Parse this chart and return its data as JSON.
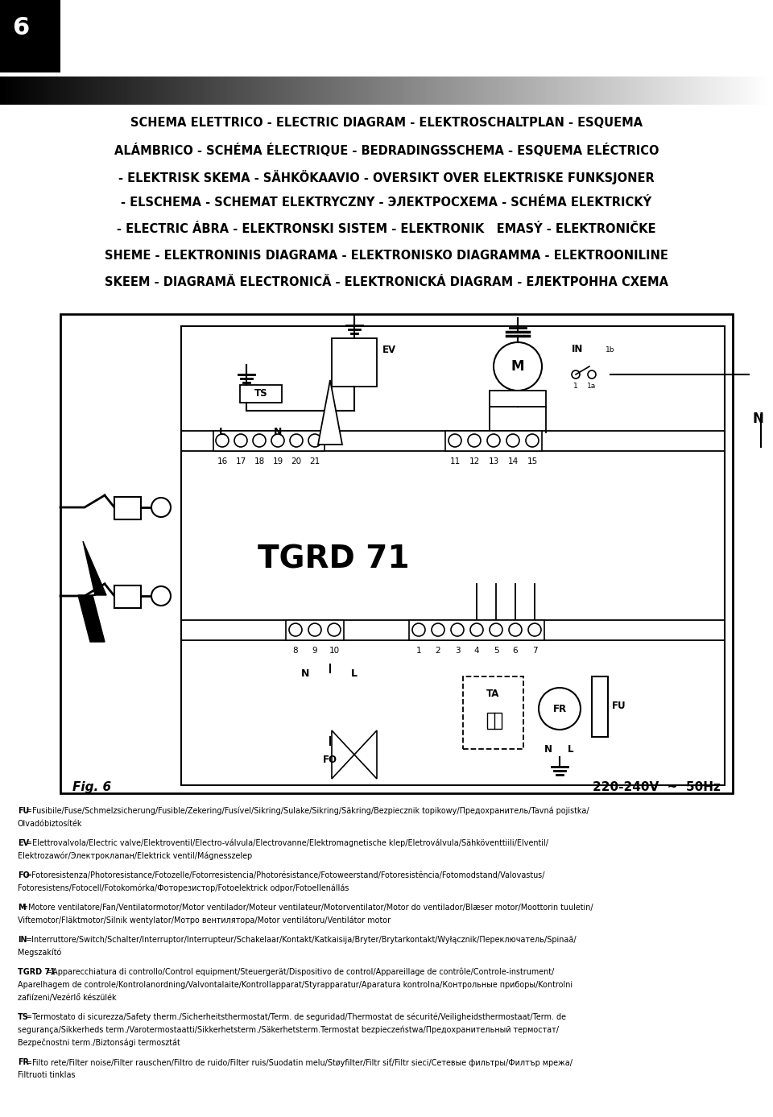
{
  "page_num": "6",
  "title_lines": [
    "SCHEMA ELETTRICO - ELECTRIC DIAGRAM - ELEKTROSCHALTPLAN - ESQUEMA",
    "ALÁMBRICO - SCHÉMA ÉLECTRIQUE - BEDRADINGSSCHEMA - ESQUEMA ELÉCTRICO",
    "- ELEKTRISK SKEMA - SÄHKÖKAAVIO - OVERSIKT OVER ELEKTRISKE FUNKSJONER",
    "- ELSCHEMA - SCHEMAT ELEKTRYCZNY - ЭЛЕКТРОСХЕМА - SCHÉMA ELEKTRICKÝ",
    "- ELECTRIC ÁBRA - ELEKTRONSKI SISTEM - ELEKTRONIK   EMASÝ - ELEKTRONIČKE",
    "SHEME - ELEKTRONINIS DIAGRAMA - ELEKTRONISKO DIAGRAMMA - ELEKTROONILINE",
    "SKEEM - DIAGRAMĂ ELECTRONICĂ - ELEKTRONICKÁ DIAGRAM - ЕЛЕКТРОННА СХЕМА"
  ],
  "diagram_label": "TGRD 71",
  "fig_label": "Fig. 6",
  "voltage_label": "220-240V  ~  50Hz",
  "footer_lines": [
    [
      "FU",
      "=Fusibile/Fuse/Schmelzsicherung/Fusible/Zekering/Fusível/Sikring/Sulake/Sikring/Säkring/Bezpiecznik topikowy/Предохранитель/Tavná pojistka/",
      "Olvadóbiztosíték"
    ],
    [
      "EV",
      "=Elettrovalvola/Electric valve/Elektroventil/Electro-válvula/Electrovanne/Elektromagnetische klep/Eletroválvula/Sähköventtiili/Elventil/",
      "Elektrozawór/Электроклапан/Elektrick ventil/Mágnesszelep"
    ],
    [
      "FO",
      "=Fotoresistenza/Photoresistance/Fotozelle/Fotorresistencia/Photorésistance/Fotoweerstand/Fotoresistência/Fotomodstand/Valovastus/",
      "Fotoresistens/Fotocell/Fotokomórka/Фоторезистор/Fotoelektrick odpor/Fotoellenállás"
    ],
    [
      "M",
      "=Motore ventilatore/Fan/Ventilatormotor/Motor ventilador/Moteur ventilateur/Motorventilator/Motor do ventilador/Blæser motor/Moottorin tuuletin/",
      "Viftemotor/Fläktmotor/Silnik wentylator/Мотро вентилятора/Motor ventilátoru/Ventilátor motor"
    ],
    [
      "IN",
      "=Interruttore/Switch/Schalter/Interruptor/Interrupteur/Schakelaar/Kontakt/Katkaisija/Bryter/Brytarkontakt/Wyłącznik/Переключатель/Spinaă/",
      "Megszakító"
    ],
    [
      "TGRD 71",
      "=Apparecchiatura di controllo/Control equipment/Steuergerät/Dispositivo de control/Appareillage de contrôle/Controle-instrument/",
      "Aparelhagem de controle/Kontrolanordning/Valvontalaite/Kontrollapparat/Styrapparatur/Aparatura kontrolna/Контрольные приборы/Kontrolni",
      "zafiízeni/Vezérlő készülék"
    ],
    [
      "TS",
      "=Termostato di sicurezza/Safety therm./Sicherheitsthermostat/Term. de seguridad/Thermostat de sécurité/Veiligheidsthermostaat/Term. de",
      "segurança/Sikkerheds term./Varotermostaatti/Sikkerhetsterm./Säkerhetsterm.Termostat bezpieczeństwa/Предохранительный термостат/",
      "Bezpečnostni term./Biztonsági termosztát"
    ],
    [
      "FR",
      "=Filto rete/Filter noise/Filter rauschen/Filtro de ruido/Filter ruis/Suodatin melu/Støyfilter/Filtr siť/Filtr sieci/Сетевые фильтры/Филтър мрежа/",
      "Filtruoti tinklas"
    ]
  ],
  "bg_color": "#ffffff"
}
